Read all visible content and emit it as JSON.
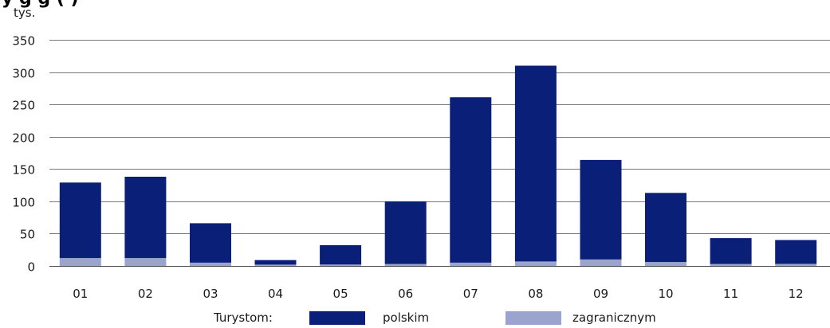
{
  "chart_data": {
    "type": "bar",
    "stacked": true,
    "title_fragment": "y                   g       g     ( )",
    "unit_label": "tys.",
    "categories": [
      "01",
      "02",
      "03",
      "04",
      "05",
      "06",
      "07",
      "08",
      "09",
      "10",
      "11",
      "12"
    ],
    "series": [
      {
        "name": "zagranicznym",
        "color": "#9aa4cf",
        "values": [
          12,
          12,
          5,
          2,
          2,
          3,
          5,
          7,
          10,
          6,
          3,
          3
        ]
      },
      {
        "name": "polskim",
        "color": "#0a1f78",
        "values": [
          117,
          126,
          61,
          7,
          30,
          97,
          256,
          303,
          154,
          107,
          40,
          37
        ]
      }
    ],
    "ylim": [
      0,
      350
    ],
    "yticks": [
      0,
      50,
      100,
      150,
      200,
      250,
      300,
      350
    ],
    "grid": true,
    "legend_position": "bottom"
  },
  "legend": {
    "prefix": "Turystom:",
    "items": [
      {
        "label": "polskim",
        "color": "#0a1f78"
      },
      {
        "label": "zagranicznym",
        "color": "#9aa4cf"
      }
    ]
  }
}
